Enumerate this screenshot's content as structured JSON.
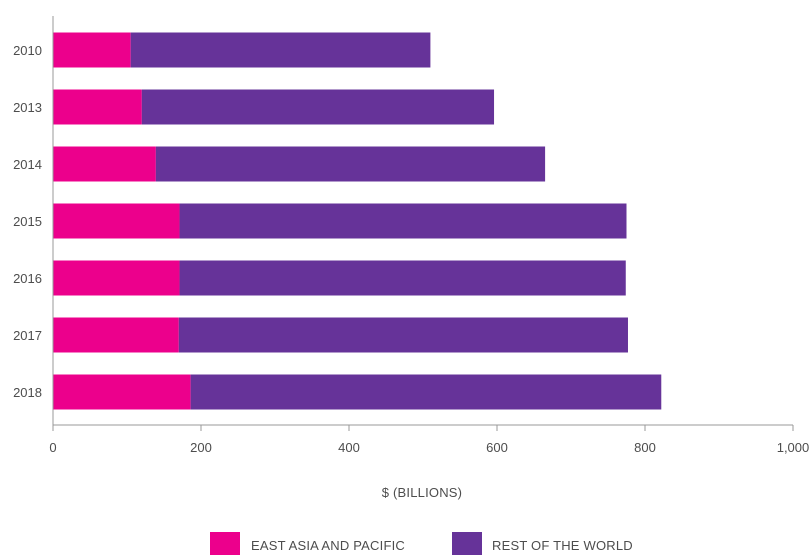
{
  "chart_data": {
    "type": "bar",
    "orientation": "horizontal",
    "stacked": true,
    "categories": [
      "2010",
      "2013",
      "2014",
      "2015",
      "2016",
      "2017",
      "2018"
    ],
    "series": [
      {
        "name": "EAST ASIA AND PACIFIC",
        "color": "#ec008c",
        "values": [
          105,
          120,
          139,
          171,
          171,
          170,
          186
        ]
      },
      {
        "name": "REST OF THE WORLD",
        "color": "#663399",
        "values": [
          405,
          476,
          526,
          604,
          603,
          607,
          636
        ]
      }
    ],
    "xlabel": "$ (BILLIONS)",
    "ylabel": "",
    "xlim": [
      0,
      1000
    ],
    "xticks": [
      "0",
      "200",
      "400",
      "600",
      "800",
      "1,000"
    ],
    "grid": false,
    "legend_position": "bottom"
  }
}
